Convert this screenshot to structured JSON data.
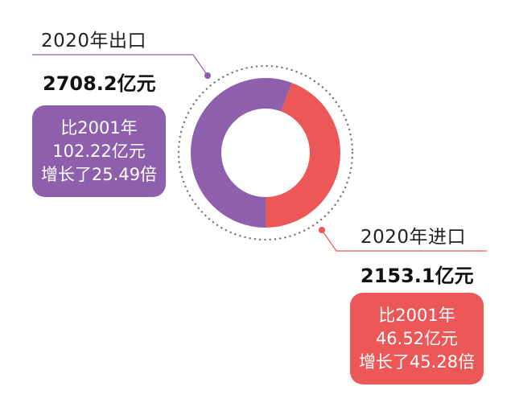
{
  "chart_data": {
    "type": "pie",
    "variant": "donut",
    "unit": "亿元",
    "series": [
      {
        "name": "2020年出口",
        "value": 2708.2,
        "color": "#8e5fad"
      },
      {
        "name": "2020年进口",
        "value": 2153.1,
        "color": "#ec5757"
      }
    ]
  },
  "export": {
    "title": "2020年出口",
    "value": "2708.2亿元",
    "box_line1": "比2001年",
    "box_line2": "102.22亿元",
    "box_line3": "增长了25.49倍",
    "color": "#8e5fad"
  },
  "import": {
    "title": "2020年进口",
    "value": "2153.1亿元",
    "box_line1": "比2001年",
    "box_line2": "46.52亿元",
    "box_line3": "增长了45.28倍",
    "color": "#ec5757"
  },
  "colors": {
    "dotted_ring": "#777777"
  }
}
